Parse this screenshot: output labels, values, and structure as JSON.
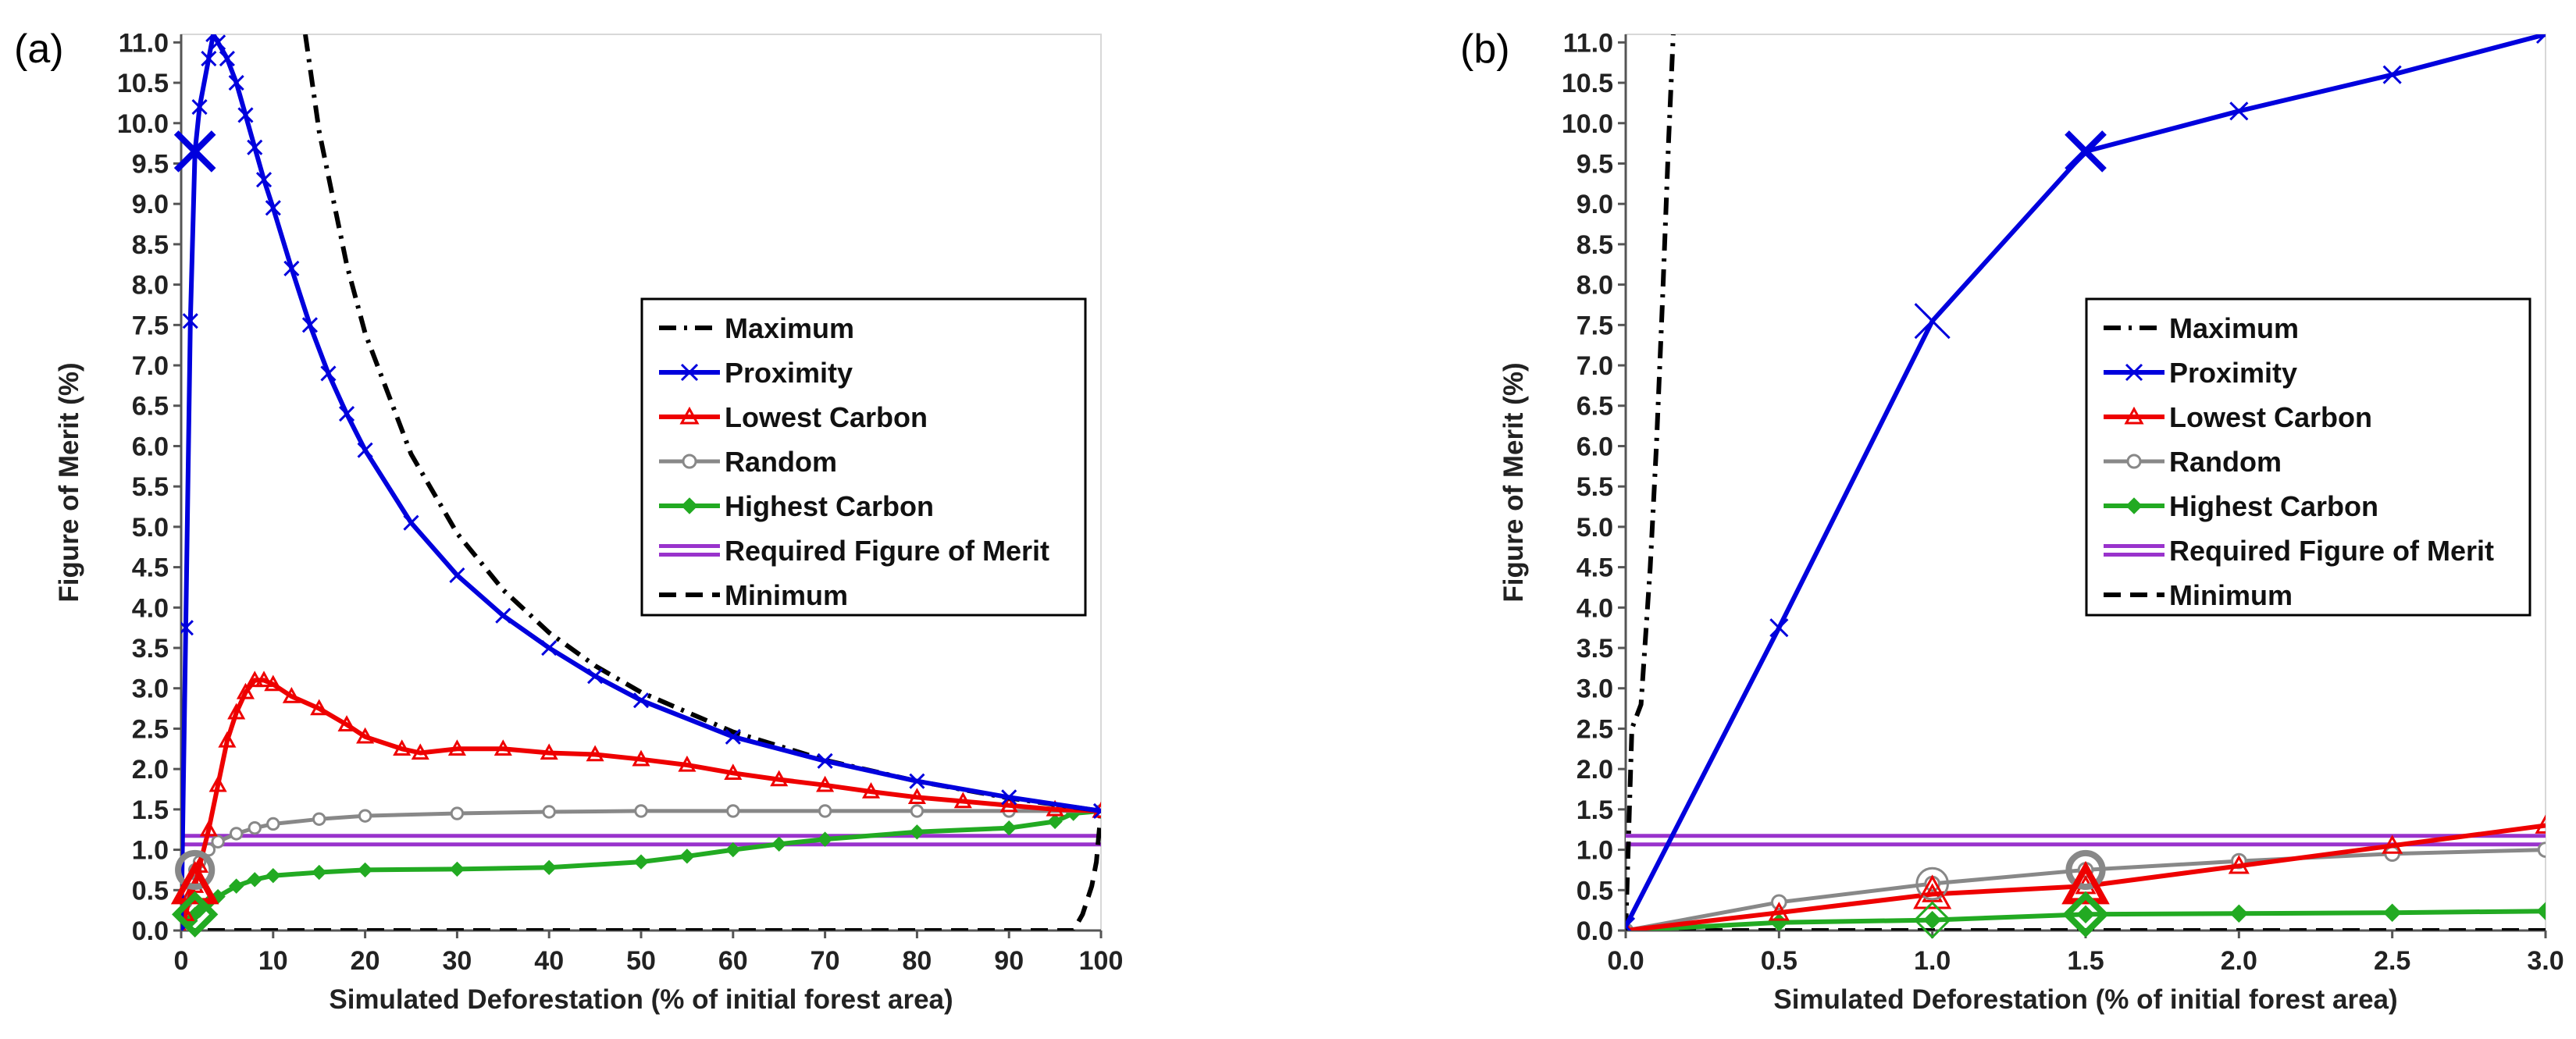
{
  "chart_data": [
    {
      "type": "line",
      "panel_label": "(a)",
      "xlabel": "Simulated Deforestation (% of initial forest area)",
      "ylabel": "Figure of Merit (%)",
      "xlim": [
        0,
        100
      ],
      "ylim": [
        0,
        11.1
      ],
      "xticks": [
        "0",
        "10",
        "20",
        "30",
        "40",
        "50",
        "60",
        "70",
        "80",
        "90",
        "100"
      ],
      "yticks": [
        "0.0",
        "0.5",
        "1.0",
        "1.5",
        "2.0",
        "2.5",
        "3.0",
        "3.5",
        "4.0",
        "4.5",
        "5.0",
        "5.5",
        "6.0",
        "6.5",
        "7.0",
        "7.5",
        "8.0",
        "8.5",
        "9.0",
        "9.5",
        "10.0",
        "10.5",
        "11.0"
      ],
      "legend": [
        "Maximum",
        "Proximity",
        "Lowest Carbon",
        "Random",
        "Highest Carbon",
        "Required Figure of Merit",
        "Minimum"
      ],
      "legend_position": "right",
      "series": [
        {
          "name": "Maximum",
          "color": "#000000",
          "x": [
            13.5,
            15,
            18,
            20,
            25,
            30,
            35,
            40,
            45,
            50,
            60,
            70,
            80,
            90,
            100
          ],
          "y": [
            11.1,
            9.9,
            8.25,
            7.4,
            5.9,
            4.92,
            4.22,
            3.69,
            3.28,
            2.95,
            2.46,
            2.11,
            1.85,
            1.64,
            1.48
          ]
        },
        {
          "name": "Proximity",
          "color": "#0000dd",
          "x": [
            0,
            0.5,
            1,
            1.5,
            2,
            3,
            3.5,
            4,
            5,
            6,
            7,
            8,
            9,
            10,
            12,
            14,
            16,
            18,
            20,
            25,
            30,
            35,
            40,
            45,
            50,
            60,
            70,
            80,
            90,
            100
          ],
          "y": [
            0,
            3.75,
            7.55,
            9.65,
            10.2,
            10.8,
            11.1,
            11.0,
            10.8,
            10.5,
            10.1,
            9.7,
            9.3,
            8.95,
            8.2,
            7.5,
            6.9,
            6.4,
            5.95,
            5.05,
            4.4,
            3.9,
            3.5,
            3.15,
            2.85,
            2.4,
            2.1,
            1.85,
            1.65,
            1.48
          ]
        },
        {
          "name": "Lowest Carbon",
          "color": "#ee0000",
          "x": [
            0,
            0.5,
            1,
            1.5,
            2,
            3,
            4,
            5,
            6,
            7,
            8,
            9,
            10,
            12,
            15,
            18,
            20,
            24,
            26,
            30,
            35,
            40,
            45,
            50,
            55,
            60,
            65,
            70,
            75,
            80,
            85,
            90,
            95,
            100
          ],
          "y": [
            0,
            0.2,
            0.45,
            0.55,
            0.8,
            1.25,
            1.8,
            2.35,
            2.7,
            2.95,
            3.1,
            3.1,
            3.05,
            2.9,
            2.75,
            2.55,
            2.4,
            2.25,
            2.2,
            2.25,
            2.25,
            2.2,
            2.18,
            2.12,
            2.05,
            1.95,
            1.87,
            1.8,
            1.72,
            1.65,
            1.6,
            1.55,
            1.5,
            1.48
          ]
        },
        {
          "name": "Random",
          "color": "#888888",
          "x": [
            0,
            0.5,
            1,
            1.5,
            2,
            3,
            4,
            6,
            8,
            10,
            15,
            20,
            30,
            40,
            50,
            60,
            70,
            80,
            90,
            100
          ],
          "y": [
            0,
            0.35,
            0.58,
            0.75,
            0.85,
            1.0,
            1.1,
            1.2,
            1.27,
            1.32,
            1.38,
            1.42,
            1.45,
            1.47,
            1.48,
            1.48,
            1.48,
            1.48,
            1.48,
            1.48
          ]
        },
        {
          "name": "Highest Carbon",
          "color": "#22aa22",
          "x": [
            0,
            0.5,
            1,
            1.5,
            2,
            3,
            4,
            6,
            8,
            10,
            15,
            20,
            30,
            40,
            50,
            55,
            60,
            65,
            70,
            80,
            90,
            95,
            97,
            100
          ],
          "y": [
            0,
            0.1,
            0.12,
            0.2,
            0.25,
            0.35,
            0.42,
            0.55,
            0.63,
            0.68,
            0.72,
            0.75,
            0.76,
            0.78,
            0.85,
            0.92,
            1.0,
            1.07,
            1.13,
            1.22,
            1.27,
            1.35,
            1.45,
            1.48
          ]
        },
        {
          "name": "Required Figure of Merit",
          "color": "#9933cc",
          "x": [
            0,
            100
          ],
          "y": [
            1.12,
            1.12
          ]
        },
        {
          "name": "Minimum",
          "color": "#000000",
          "x": [
            0,
            97,
            98,
            99,
            99.5,
            100
          ],
          "y": [
            0,
            0,
            0.2,
            0.55,
            0.85,
            1.48
          ]
        }
      ]
    },
    {
      "type": "line",
      "panel_label": "(b)",
      "xlabel": "Simulated Deforestation (% of initial forest area)",
      "ylabel": "Figure of Merit (%)",
      "xlim": [
        0,
        3
      ],
      "ylim": [
        0,
        11.1
      ],
      "xticks": [
        "0.0",
        "0.5",
        "1.0",
        "1.5",
        "2.0",
        "2.5",
        "3.0"
      ],
      "yticks": [
        "0.0",
        "0.5",
        "1.0",
        "1.5",
        "2.0",
        "2.5",
        "3.0",
        "3.5",
        "4.0",
        "4.5",
        "5.0",
        "5.5",
        "6.0",
        "6.5",
        "7.0",
        "7.5",
        "8.0",
        "8.5",
        "9.0",
        "9.5",
        "10.0",
        "10.5",
        "11.0"
      ],
      "legend": [
        "Maximum",
        "Proximity",
        "Lowest Carbon",
        "Random",
        "Highest Carbon",
        "Required Figure of Merit",
        "Minimum"
      ],
      "legend_position": "right",
      "series": [
        {
          "name": "Maximum",
          "color": "#000000",
          "x": [
            0,
            0.02,
            0.05,
            0.08,
            0.1,
            0.12,
            0.14,
            0.155
          ],
          "y": [
            0,
            2.5,
            2.8,
            4.5,
            6.0,
            7.8,
            9.8,
            11.1
          ]
        },
        {
          "name": "Proximity",
          "color": "#0000dd",
          "x": [
            0,
            0.5,
            1.0,
            1.5,
            2.0,
            2.5,
            3.0
          ],
          "y": [
            0.05,
            3.75,
            7.55,
            9.65,
            10.15,
            10.6,
            11.1
          ]
        },
        {
          "name": "Lowest Carbon",
          "color": "#ee0000",
          "x": [
            0,
            0.5,
            1.0,
            1.5,
            2.0,
            2.5,
            3.0
          ],
          "y": [
            0,
            0.22,
            0.45,
            0.55,
            0.8,
            1.05,
            1.3
          ]
        },
        {
          "name": "Random",
          "color": "#888888",
          "x": [
            0,
            0.5,
            1.0,
            1.5,
            2.0,
            2.5,
            3.0
          ],
          "y": [
            0,
            0.35,
            0.58,
            0.75,
            0.86,
            0.95,
            1.0
          ]
        },
        {
          "name": "Highest Carbon",
          "color": "#22aa22",
          "x": [
            0,
            0.5,
            1.0,
            1.5,
            2.0,
            2.5,
            3.0
          ],
          "y": [
            0,
            0.1,
            0.13,
            0.2,
            0.21,
            0.22,
            0.24
          ]
        },
        {
          "name": "Required Figure of Merit",
          "color": "#9933cc",
          "x": [
            0,
            3.0
          ],
          "y": [
            1.12,
            1.12
          ]
        },
        {
          "name": "Minimum",
          "color": "#000000",
          "x": [
            0,
            3.0
          ],
          "y": [
            0,
            0
          ]
        }
      ]
    }
  ]
}
